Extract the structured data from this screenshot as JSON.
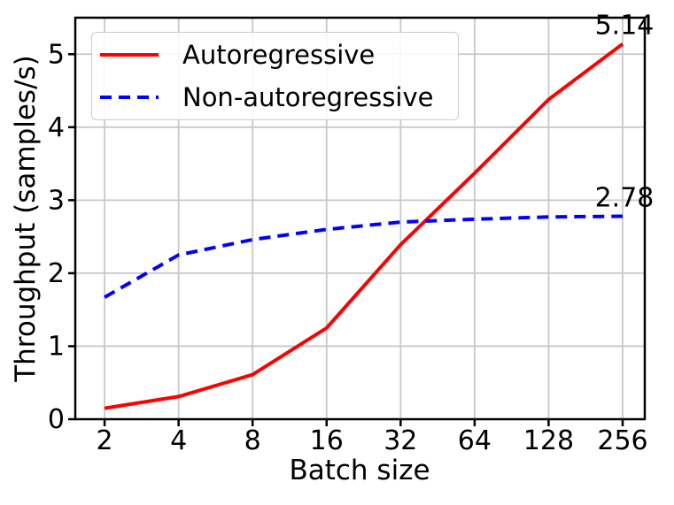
{
  "chart_data": {
    "type": "line",
    "title": "",
    "xlabel": "Batch size",
    "ylabel": "Throughput (samples/s)",
    "xscale": "log2",
    "grid": true,
    "legend_position": "upper left",
    "x": [
      2,
      4,
      8,
      16,
      32,
      64,
      128,
      256
    ],
    "xtick_labels": [
      "2",
      "4",
      "8",
      "16",
      "32",
      "64",
      "128",
      "256"
    ],
    "yticks": [
      0,
      1,
      2,
      3,
      4,
      5
    ],
    "ytick_labels": [
      "0",
      "1",
      "2",
      "3",
      "4",
      "5"
    ],
    "xlim": [
      1.52,
      315
    ],
    "ylim": [
      0,
      5.5
    ],
    "series": [
      {
        "name": "Autoregressive",
        "color": "#ff0000",
        "style": "solid",
        "values": [
          0.15,
          0.31,
          0.61,
          1.25,
          2.39,
          3.37,
          4.38,
          5.14
        ]
      },
      {
        "name": "Non-autoregressive",
        "color": "#0000ff",
        "style": "dashed",
        "values": [
          1.67,
          2.25,
          2.46,
          2.6,
          2.7,
          2.74,
          2.77,
          2.78
        ]
      }
    ],
    "annotations": [
      {
        "text": "5.14",
        "x": 256,
        "y": 5.14
      },
      {
        "text": "2.78",
        "x": 256,
        "y": 2.78
      }
    ],
    "colors": {
      "grid": "#c8c8c8",
      "spine": "#000000",
      "text": "#000000",
      "background": "#ffffff"
    }
  }
}
